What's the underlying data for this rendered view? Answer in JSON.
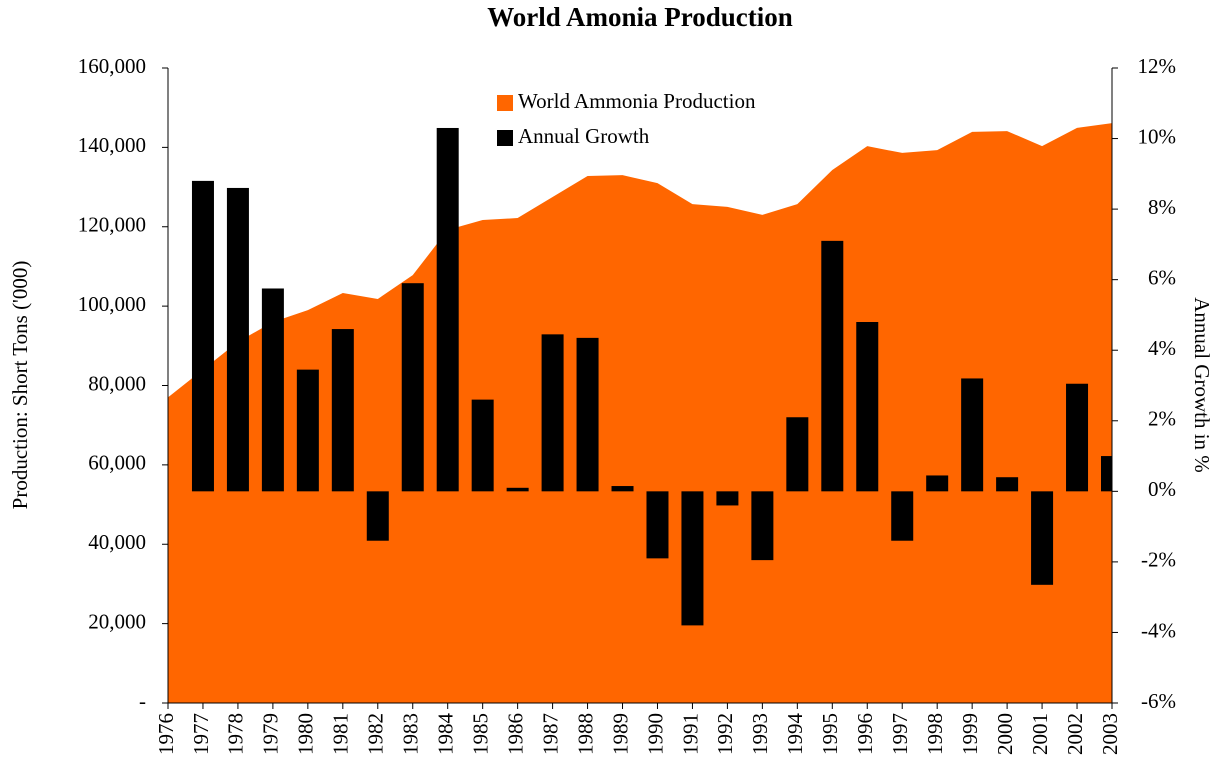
{
  "chart_data": {
    "type": "combo",
    "title": "World Amonia Production",
    "y_label": "Production: Short Tons ('000)",
    "y2_label": "Annual Growth in %",
    "categories": [
      "1976",
      "1977",
      "1978",
      "1979",
      "1980",
      "1981",
      "1982",
      "1983",
      "1984",
      "1985",
      "1986",
      "1987",
      "1988",
      "1989",
      "1990",
      "1991",
      "1992",
      "1993",
      "1994",
      "1995",
      "1996",
      "1997",
      "1998",
      "1999",
      "2000",
      "2001",
      "2002",
      "2003"
    ],
    "series": [
      {
        "name": "World Ammonia Production",
        "type": "area",
        "color": "#ff6600",
        "values": [
          77000,
          84000,
          91000,
          96000,
          99000,
          103300,
          101800,
          107800,
          119200,
          121700,
          122200,
          127500,
          132800,
          133000,
          131000,
          125700,
          125000,
          123000,
          125700,
          134300,
          140300,
          138600,
          139300,
          143900,
          144100,
          140300,
          144900,
          146100
        ]
      },
      {
        "name": "Annual Growth",
        "type": "bar",
        "color": "#000000",
        "axis": "y2",
        "values": [
          null,
          8.8,
          8.6,
          5.75,
          3.45,
          4.6,
          -1.4,
          5.9,
          10.3,
          2.6,
          0.1,
          4.45,
          4.35,
          0.15,
          -1.9,
          -3.8,
          -0.4,
          -1.95,
          2.1,
          7.1,
          4.8,
          -1.4,
          0.45,
          3.2,
          0.4,
          -2.65,
          3.05,
          1.0
        ]
      }
    ],
    "ylim": [
      0,
      160000
    ],
    "yticks": [
      {
        "value": 0,
        "label": "-"
      },
      {
        "value": 20000,
        "label": "20,000"
      },
      {
        "value": 40000,
        "label": "40,000"
      },
      {
        "value": 60000,
        "label": "60,000"
      },
      {
        "value": 80000,
        "label": "80,000"
      },
      {
        "value": 100000,
        "label": "100,000"
      },
      {
        "value": 120000,
        "label": "120,000"
      },
      {
        "value": 140000,
        "label": "140,000"
      },
      {
        "value": 160000,
        "label": "160,000"
      }
    ],
    "y2lim": [
      -6,
      12
    ],
    "y2ticks": [
      {
        "value": -6,
        "label": "-6%"
      },
      {
        "value": -4,
        "label": "-4%"
      },
      {
        "value": -2,
        "label": "-2%"
      },
      {
        "value": 0,
        "label": "0%"
      },
      {
        "value": 2,
        "label": "2%"
      },
      {
        "value": 4,
        "label": "4%"
      },
      {
        "value": 6,
        "label": "6%"
      },
      {
        "value": 8,
        "label": "8%"
      },
      {
        "value": 10,
        "label": "10%"
      },
      {
        "value": 12,
        "label": "12%"
      }
    ],
    "legend": "top"
  }
}
